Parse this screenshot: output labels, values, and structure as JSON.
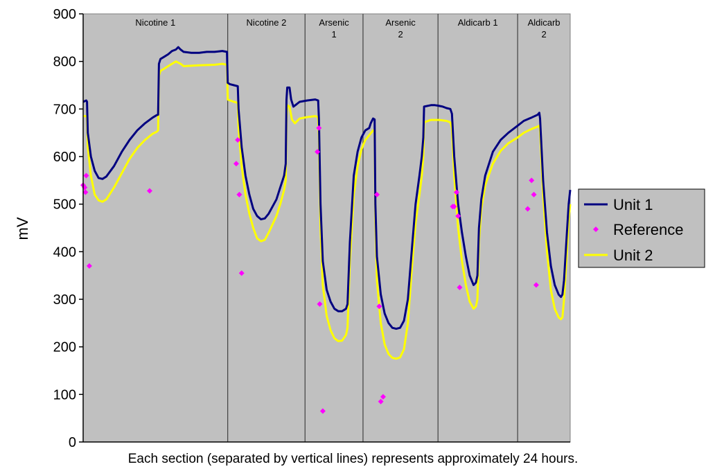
{
  "chart_data": {
    "type": "line",
    "title": "",
    "xlabel": "",
    "ylabel": "mV",
    "ylim": [
      0,
      900
    ],
    "yticks": [
      0,
      100,
      200,
      300,
      400,
      500,
      600,
      700,
      800,
      900
    ],
    "xlim": [
      0,
      6.3
    ],
    "x_unit_note": "x measured in sections (each approximately 24 hours)",
    "plot_background": "#c0c0c0",
    "grid": false,
    "legend_position": "right",
    "sections": [
      {
        "label": "Nicotine 1",
        "start": 0.0,
        "end": 1.87
      },
      {
        "label": "Nicotine 2",
        "start": 1.87,
        "end": 2.87
      },
      {
        "label": "Arsenic 1",
        "start": 2.87,
        "end": 3.62
      },
      {
        "label": "Arsenic  2",
        "start": 3.62,
        "end": 4.59
      },
      {
        "label": "Aldicarb 1",
        "start": 4.59,
        "end": 5.62
      },
      {
        "label": "Aldicarb 2",
        "start": 5.62,
        "end": 6.3
      }
    ],
    "series": [
      {
        "name": "Unit 1",
        "color": "#000080",
        "style": "line",
        "points": [
          [
            0.0,
            715
          ],
          [
            0.04,
            718
          ],
          [
            0.05,
            715
          ],
          [
            0.06,
            650
          ],
          [
            0.1,
            600
          ],
          [
            0.15,
            570
          ],
          [
            0.2,
            555
          ],
          [
            0.25,
            553
          ],
          [
            0.3,
            558
          ],
          [
            0.4,
            580
          ],
          [
            0.5,
            610
          ],
          [
            0.6,
            635
          ],
          [
            0.7,
            655
          ],
          [
            0.8,
            670
          ],
          [
            0.9,
            682
          ],
          [
            0.95,
            687
          ],
          [
            0.97,
            688
          ],
          [
            0.98,
            795
          ],
          [
            1.0,
            805
          ],
          [
            1.05,
            810
          ],
          [
            1.1,
            815
          ],
          [
            1.15,
            822
          ],
          [
            1.2,
            825
          ],
          [
            1.23,
            830
          ],
          [
            1.26,
            825
          ],
          [
            1.3,
            820
          ],
          [
            1.4,
            818
          ],
          [
            1.5,
            818
          ],
          [
            1.6,
            820
          ],
          [
            1.7,
            820
          ],
          [
            1.8,
            822
          ],
          [
            1.86,
            820
          ],
          [
            1.87,
            755
          ],
          [
            1.9,
            752
          ],
          [
            1.95,
            750
          ],
          [
            2.0,
            748
          ],
          [
            2.01,
            700
          ],
          [
            2.05,
            620
          ],
          [
            2.1,
            560
          ],
          [
            2.15,
            520
          ],
          [
            2.2,
            490
          ],
          [
            2.25,
            475
          ],
          [
            2.3,
            468
          ],
          [
            2.35,
            470
          ],
          [
            2.4,
            480
          ],
          [
            2.5,
            510
          ],
          [
            2.55,
            535
          ],
          [
            2.6,
            560
          ],
          [
            2.62,
            585
          ],
          [
            2.63,
            720
          ],
          [
            2.64,
            745
          ],
          [
            2.67,
            745
          ],
          [
            2.69,
            720
          ],
          [
            2.72,
            705
          ],
          [
            2.76,
            710
          ],
          [
            2.8,
            715
          ],
          [
            2.9,
            718
          ],
          [
            3.0,
            720
          ],
          [
            3.04,
            718
          ],
          [
            3.05,
            680
          ],
          [
            3.07,
            500
          ],
          [
            3.1,
            380
          ],
          [
            3.15,
            320
          ],
          [
            3.2,
            295
          ],
          [
            3.25,
            280
          ],
          [
            3.3,
            275
          ],
          [
            3.35,
            275
          ],
          [
            3.4,
            280
          ],
          [
            3.42,
            290
          ],
          [
            3.45,
            420
          ],
          [
            3.5,
            560
          ],
          [
            3.55,
            610
          ],
          [
            3.6,
            640
          ],
          [
            3.65,
            655
          ],
          [
            3.7,
            660
          ],
          [
            3.72,
            670
          ],
          [
            3.75,
            680
          ],
          [
            3.77,
            678
          ],
          [
            3.78,
            500
          ],
          [
            3.8,
            390
          ],
          [
            3.85,
            310
          ],
          [
            3.9,
            270
          ],
          [
            3.95,
            250
          ],
          [
            4.0,
            240
          ],
          [
            4.05,
            238
          ],
          [
            4.1,
            240
          ],
          [
            4.15,
            255
          ],
          [
            4.2,
            300
          ],
          [
            4.25,
            400
          ],
          [
            4.3,
            500
          ],
          [
            4.35,
            560
          ],
          [
            4.38,
            600
          ],
          [
            4.4,
            640
          ],
          [
            4.41,
            705
          ],
          [
            4.5,
            708
          ],
          [
            4.55,
            708
          ],
          [
            4.59,
            707
          ],
          [
            4.65,
            705
          ],
          [
            4.7,
            702
          ],
          [
            4.75,
            700
          ],
          [
            4.77,
            690
          ],
          [
            4.8,
            600
          ],
          [
            4.85,
            500
          ],
          [
            4.9,
            440
          ],
          [
            4.95,
            390
          ],
          [
            5.0,
            350
          ],
          [
            5.05,
            330
          ],
          [
            5.08,
            335
          ],
          [
            5.1,
            350
          ],
          [
            5.12,
            450
          ],
          [
            5.15,
            510
          ],
          [
            5.2,
            560
          ],
          [
            5.3,
            610
          ],
          [
            5.4,
            635
          ],
          [
            5.5,
            650
          ],
          [
            5.62,
            665
          ],
          [
            5.7,
            675
          ],
          [
            5.8,
            682
          ],
          [
            5.88,
            688
          ],
          [
            5.9,
            692
          ],
          [
            5.91,
            680
          ],
          [
            5.95,
            550
          ],
          [
            6.0,
            440
          ],
          [
            6.05,
            370
          ],
          [
            6.1,
            330
          ],
          [
            6.15,
            310
          ],
          [
            6.18,
            305
          ],
          [
            6.2,
            310
          ],
          [
            6.22,
            340
          ],
          [
            6.25,
            420
          ],
          [
            6.28,
            500
          ],
          [
            6.3,
            530
          ]
        ]
      },
      {
        "name": "Reference",
        "color": "#ff00ff",
        "style": "scatter",
        "points": [
          [
            0.0,
            540
          ],
          [
            0.02,
            535
          ],
          [
            0.03,
            525
          ],
          [
            0.04,
            560
          ],
          [
            0.08,
            370
          ],
          [
            0.86,
            528
          ],
          [
            1.98,
            585
          ],
          [
            2.0,
            635
          ],
          [
            2.02,
            520
          ],
          [
            2.05,
            355
          ],
          [
            3.03,
            610
          ],
          [
            3.05,
            660
          ],
          [
            3.06,
            290
          ],
          [
            3.1,
            65
          ],
          [
            3.8,
            520
          ],
          [
            3.83,
            285
          ],
          [
            3.85,
            85
          ],
          [
            3.88,
            95
          ],
          [
            4.78,
            495
          ],
          [
            4.8,
            495
          ],
          [
            4.83,
            525
          ],
          [
            4.85,
            475
          ],
          [
            4.87,
            325
          ],
          [
            5.75,
            490
          ],
          [
            5.8,
            550
          ],
          [
            5.83,
            520
          ],
          [
            5.86,
            330
          ]
        ]
      },
      {
        "name": "Unit 2",
        "color": "#ffff00",
        "style": "line",
        "points": [
          [
            0.0,
            685
          ],
          [
            0.05,
            685
          ],
          [
            0.06,
            620
          ],
          [
            0.1,
            560
          ],
          [
            0.15,
            520
          ],
          [
            0.2,
            508
          ],
          [
            0.25,
            505
          ],
          [
            0.3,
            510
          ],
          [
            0.4,
            535
          ],
          [
            0.5,
            565
          ],
          [
            0.6,
            595
          ],
          [
            0.7,
            618
          ],
          [
            0.8,
            635
          ],
          [
            0.9,
            648
          ],
          [
            0.95,
            652
          ],
          [
            0.97,
            655
          ],
          [
            0.98,
            770
          ],
          [
            1.0,
            780
          ],
          [
            1.05,
            785
          ],
          [
            1.1,
            790
          ],
          [
            1.2,
            800
          ],
          [
            1.26,
            795
          ],
          [
            1.3,
            790
          ],
          [
            1.5,
            792
          ],
          [
            1.7,
            793
          ],
          [
            1.8,
            795
          ],
          [
            1.86,
            793
          ],
          [
            1.87,
            720
          ],
          [
            1.9,
            718
          ],
          [
            1.95,
            715
          ],
          [
            2.0,
            713
          ],
          [
            2.01,
            660
          ],
          [
            2.05,
            580
          ],
          [
            2.1,
            520
          ],
          [
            2.15,
            480
          ],
          [
            2.2,
            450
          ],
          [
            2.25,
            428
          ],
          [
            2.3,
            422
          ],
          [
            2.35,
            425
          ],
          [
            2.4,
            440
          ],
          [
            2.5,
            475
          ],
          [
            2.55,
            500
          ],
          [
            2.6,
            530
          ],
          [
            2.62,
            550
          ],
          [
            2.63,
            680
          ],
          [
            2.64,
            708
          ],
          [
            2.67,
            705
          ],
          [
            2.7,
            678
          ],
          [
            2.74,
            670
          ],
          [
            2.8,
            680
          ],
          [
            2.9,
            683
          ],
          [
            3.0,
            685
          ],
          [
            3.04,
            683
          ],
          [
            3.05,
            640
          ],
          [
            3.07,
            450
          ],
          [
            3.1,
            330
          ],
          [
            3.15,
            265
          ],
          [
            3.2,
            235
          ],
          [
            3.25,
            218
          ],
          [
            3.3,
            212
          ],
          [
            3.35,
            213
          ],
          [
            3.4,
            225
          ],
          [
            3.42,
            240
          ],
          [
            3.45,
            380
          ],
          [
            3.5,
            520
          ],
          [
            3.55,
            580
          ],
          [
            3.6,
            615
          ],
          [
            3.65,
            635
          ],
          [
            3.7,
            645
          ],
          [
            3.75,
            655
          ],
          [
            3.77,
            652
          ],
          [
            3.78,
            470
          ],
          [
            3.8,
            340
          ],
          [
            3.85,
            250
          ],
          [
            3.9,
            205
          ],
          [
            3.95,
            185
          ],
          [
            4.0,
            177
          ],
          [
            4.05,
            175
          ],
          [
            4.1,
            178
          ],
          [
            4.15,
            195
          ],
          [
            4.2,
            250
          ],
          [
            4.25,
            360
          ],
          [
            4.3,
            460
          ],
          [
            4.35,
            520
          ],
          [
            4.38,
            560
          ],
          [
            4.4,
            600
          ],
          [
            4.41,
            672
          ],
          [
            4.5,
            677
          ],
          [
            4.6,
            677
          ],
          [
            4.7,
            675
          ],
          [
            4.75,
            672
          ],
          [
            4.77,
            660
          ],
          [
            4.8,
            560
          ],
          [
            4.85,
            450
          ],
          [
            4.9,
            380
          ],
          [
            4.95,
            330
          ],
          [
            5.0,
            295
          ],
          [
            5.05,
            280
          ],
          [
            5.08,
            285
          ],
          [
            5.1,
            300
          ],
          [
            5.12,
            420
          ],
          [
            5.15,
            490
          ],
          [
            5.2,
            540
          ],
          [
            5.3,
            585
          ],
          [
            5.4,
            612
          ],
          [
            5.5,
            628
          ],
          [
            5.62,
            640
          ],
          [
            5.7,
            650
          ],
          [
            5.8,
            658
          ],
          [
            5.88,
            663
          ],
          [
            5.9,
            665
          ],
          [
            5.91,
            655
          ],
          [
            5.95,
            520
          ],
          [
            6.0,
            400
          ],
          [
            6.05,
            320
          ],
          [
            6.1,
            280
          ],
          [
            6.15,
            262
          ],
          [
            6.18,
            258
          ],
          [
            6.2,
            262
          ],
          [
            6.22,
            300
          ],
          [
            6.25,
            380
          ],
          [
            6.28,
            470
          ],
          [
            6.3,
            500
          ]
        ]
      }
    ],
    "caption": "Each section (separated by vertical lines) represents approximately 24 hours."
  }
}
